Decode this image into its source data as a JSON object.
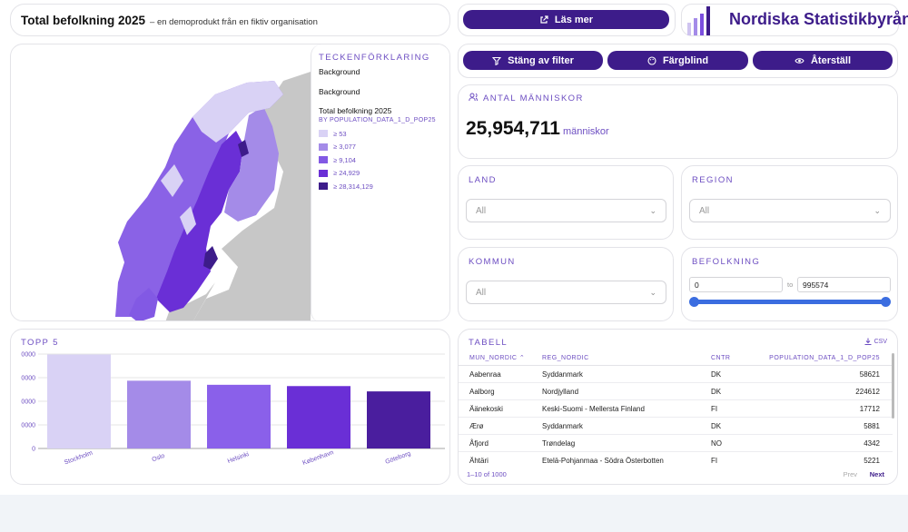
{
  "header": {
    "title": "Total befolkning 2025",
    "subtitle": "– en demoprodukt från en fiktiv organisation"
  },
  "buttons": {
    "read_more": "Läs mer",
    "close_filter": "Stäng av filter",
    "colorblind": "Färgblind",
    "reset": "Återställ"
  },
  "brand": {
    "name": "Nordiska Statistikbyrån"
  },
  "legend": {
    "title": "TECKENFÖRKLARING",
    "background_1": "Background",
    "background_2": "Background",
    "layer_title": "Total befolkning 2025",
    "layer_sub": "BY POPULATION_DATA_1_D_POP25",
    "items": [
      {
        "label": "≥ 53",
        "color": "#d9d2f5"
      },
      {
        "label": "≥ 3,077",
        "color": "#a48be8"
      },
      {
        "label": "≥ 9,104",
        "color": "#8259e4"
      },
      {
        "label": "≥ 24,929",
        "color": "#6a2fd6"
      },
      {
        "label": "≥ 28,314,129",
        "color": "#3d1c8a"
      }
    ]
  },
  "kpi": {
    "label": "ANTAL MÄNNISKOR",
    "value": "25,954,711",
    "unit": "människor"
  },
  "filters": {
    "land_label": "LAND",
    "land_value": "All",
    "region_label": "REGION",
    "region_value": "All",
    "kommun_label": "KOMMUN",
    "kommun_value": "All",
    "befolkning_label": "BEFOLKNING",
    "min": "0",
    "to": "to",
    "max": "995574"
  },
  "top5": {
    "title": "TOPP 5"
  },
  "chart_data": {
    "type": "bar",
    "categories": [
      "Stockholm",
      "Oslo",
      "Helsinki",
      "København",
      "Göteborg"
    ],
    "values": [
      995574,
      717710,
      674500,
      660842,
      604616
    ],
    "colors": [
      "#d9d2f5",
      "#a48be8",
      "#8a60ea",
      "#6a2fd6",
      "#4a1e9e"
    ],
    "yticks": [
      "0",
      "0000",
      "0000",
      "0000",
      "0000"
    ],
    "ylim": [
      0,
      1000000
    ],
    "grid": true
  },
  "table": {
    "title": "TABELL",
    "csv": "CSV",
    "columns": [
      "MUN_NORDIC",
      "REG_NORDIC",
      "CNTR",
      "POPULATION_DATA_1_D_POP25"
    ],
    "rows": [
      [
        "Aabenraa",
        "Syddanmark",
        "DK",
        "58621"
      ],
      [
        "Aalborg",
        "Nordjylland",
        "DK",
        "224612"
      ],
      [
        "Äänekoski",
        "Keski-Suomi - Mellersta Finland",
        "FI",
        "17712"
      ],
      [
        "Ærø",
        "Syddanmark",
        "DK",
        "5881"
      ],
      [
        "Åfjord",
        "Trøndelag",
        "NO",
        "4342"
      ],
      [
        "Ähtäri",
        "Etelä-Pohjanmaa - Södra Österbotten",
        "FI",
        "5221"
      ]
    ],
    "range": "1–10 of 1000",
    "prev": "Prev",
    "next": "Next"
  }
}
